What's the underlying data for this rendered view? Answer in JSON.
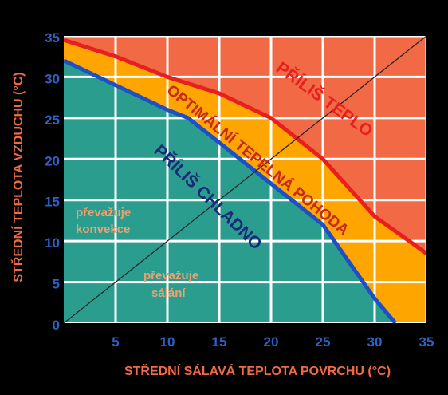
{
  "chart_data": {
    "type": "line",
    "x_label": "STŘEDNÍ SÁLAVÁ TEPLOTA POVRCHU (°C)",
    "y_label": "STŘEDNÍ TEPLOTA VZDUCHU (°C)",
    "xlim": [
      0,
      35
    ],
    "ylim": [
      0,
      35
    ],
    "xticks": [
      5,
      10,
      15,
      20,
      25,
      30,
      35
    ],
    "yticks": [
      0,
      5,
      10,
      15,
      20,
      25,
      30,
      35
    ],
    "grid": true,
    "background_color": "#f26a45",
    "series": [
      {
        "color": "#e81f1f",
        "fill": "#ffa500",
        "x": [
          0,
          5,
          10,
          15,
          20,
          25,
          30,
          35
        ],
        "values": [
          34.5,
          32.5,
          30,
          28,
          25,
          20,
          13,
          8.5
        ]
      },
      {
        "color": "#1f4fc8",
        "fill": "#2a9d8f",
        "x": [
          0,
          5,
          10,
          12,
          15,
          20,
          25,
          30,
          32
        ],
        "values": [
          32,
          29,
          26,
          25,
          22,
          17,
          12,
          3,
          0
        ]
      },
      {
        "color": "#222222",
        "x": [
          0,
          35
        ],
        "values": [
          0,
          35
        ]
      }
    ],
    "annotations": [
      "PŘÍLIŠ TEPLO",
      "OPTIMÁLNÍ TEPELNÁ POHODA",
      "PŘÍLIŠ CHLADNO",
      "převažuje",
      "konvekce",
      "převažuje",
      "sálání"
    ]
  }
}
